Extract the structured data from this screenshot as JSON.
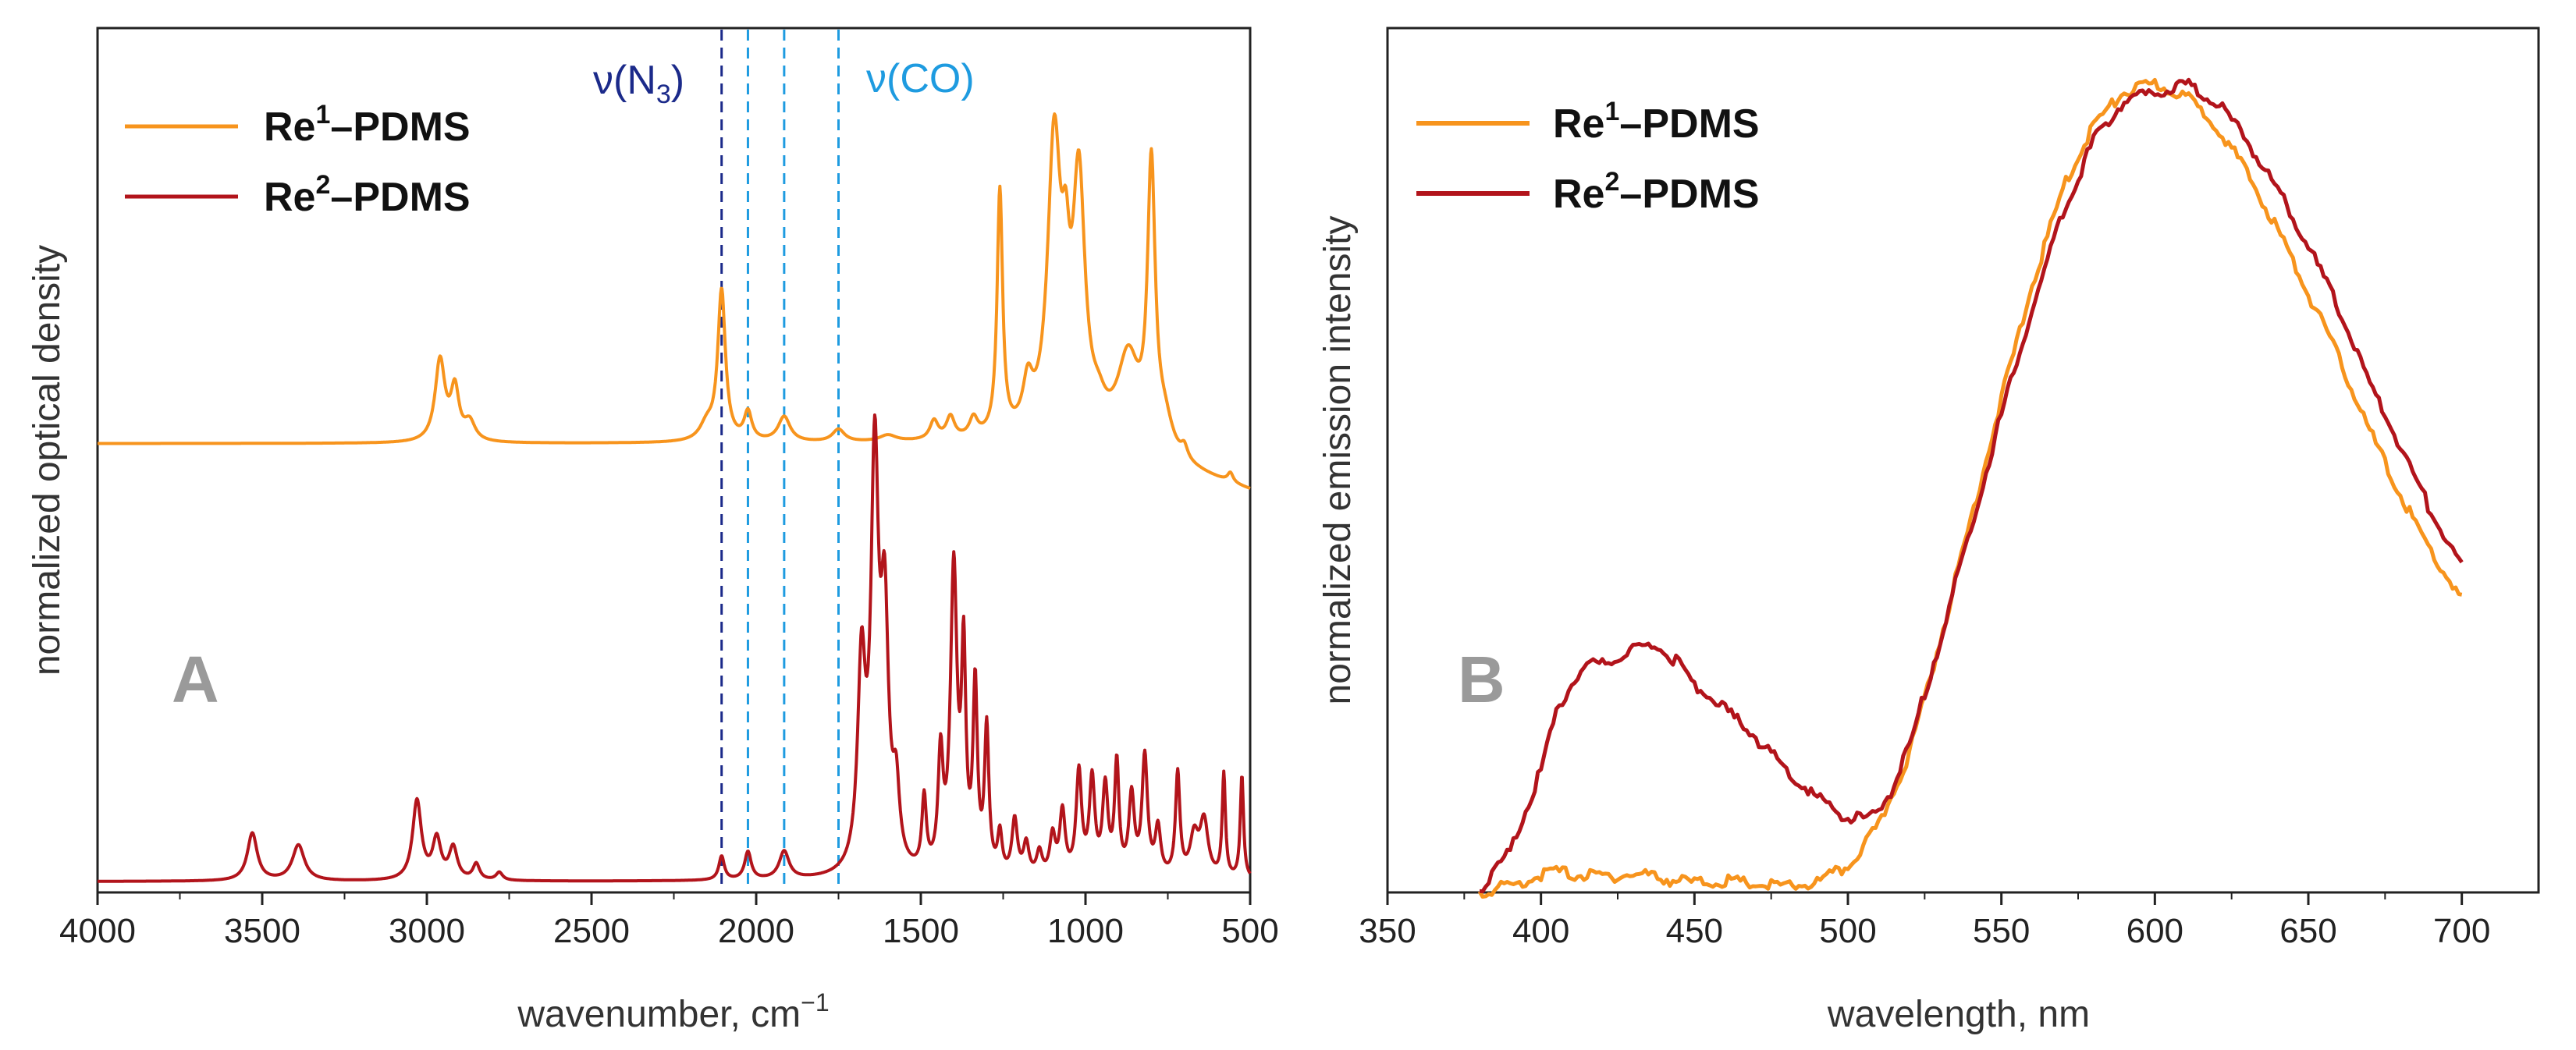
{
  "chart_data": [
    {
      "type": "line",
      "panel_label": "A",
      "xlabel": "wavenumber, cm",
      "xlabel_superscript": "−1",
      "ylabel": "normalized optical density",
      "xlim": [
        4000,
        500
      ],
      "ylim": [
        0,
        1
      ],
      "x_ticks": [
        "4000",
        "3500",
        "3000",
        "2500",
        "2000",
        "1500",
        "1000",
        "500"
      ],
      "legend": [
        {
          "prefix": "Re",
          "superscript": "1",
          "suffix": "–PDMS",
          "color": "#f7941d"
        },
        {
          "prefix": "Re",
          "superscript": "2",
          "suffix": "–PDMS",
          "color": "#b2141b"
        }
      ],
      "annotations": [
        {
          "text": "ν(N",
          "subscript": "3",
          "close": ")",
          "color": "#1b2a8a",
          "at_x": 2100
        },
        {
          "text": "ν(CO)",
          "color": "#1e9be0",
          "at_x": 1750
        }
      ],
      "dashed_lines": [
        {
          "x": 2105,
          "color": "#1b2a8a"
        },
        {
          "x": 2025,
          "color": "#1e9be0"
        },
        {
          "x": 1915,
          "color": "#1e9be0"
        },
        {
          "x": 1750,
          "color": "#1e9be0"
        }
      ],
      "series": [
        {
          "name": "Re1–PDMS",
          "color": "#f7941d",
          "baseline": 0.545,
          "peaks": [
            [
              2960,
              0.13,
              18
            ],
            [
              2915,
              0.08,
              15
            ],
            [
              2870,
              0.03,
              20
            ],
            [
              2105,
              0.24,
              14
            ],
            [
              2150,
              0.025,
              25
            ],
            [
              2025,
              0.045,
              14
            ],
            [
              1915,
              0.04,
              22
            ],
            [
              1750,
              0.02,
              22
            ],
            [
              1600,
              0.01,
              30
            ],
            [
              1460,
              0.03,
              15
            ],
            [
              1410,
              0.035,
              15
            ],
            [
              1340,
              0.03,
              15
            ],
            [
              1260,
              0.39,
              10
            ],
            [
              1175,
              0.07,
              18
            ],
            [
              1095,
              0.46,
              24
            ],
            [
              1060,
              0.16,
              14
            ],
            [
              1020,
              0.39,
              22
            ],
            [
              960,
              0.03,
              25
            ],
            [
              870,
              0.14,
              40
            ],
            [
              800,
              0.44,
              14
            ],
            [
              760,
              0.05,
              30
            ],
            [
              700,
              0.02,
              12
            ],
            [
              560,
              0.015,
              10
            ]
          ],
          "tilt": [
            [
              1000,
              0.0
            ],
            [
              500,
              -0.06
            ]
          ]
        },
        {
          "name": "Re2–PDMS",
          "color": "#b2141b",
          "baseline": 0.0,
          "peaks": [
            [
              3530,
              0.06,
              18
            ],
            [
              3390,
              0.045,
              22
            ],
            [
              3030,
              0.1,
              16
            ],
            [
              2970,
              0.05,
              15
            ],
            [
              2920,
              0.04,
              15
            ],
            [
              2850,
              0.02,
              12
            ],
            [
              2780,
              0.01,
              12
            ],
            [
              2105,
              0.03,
              10
            ],
            [
              2025,
              0.035,
              12
            ],
            [
              1915,
              0.035,
              18
            ],
            [
              1680,
              0.25,
              14
            ],
            [
              1640,
              0.5,
              14
            ],
            [
              1610,
              0.3,
              14
            ],
            [
              1575,
              0.09,
              12
            ],
            [
              1490,
              0.09,
              8
            ],
            [
              1440,
              0.14,
              9
            ],
            [
              1400,
              0.38,
              12
            ],
            [
              1370,
              0.26,
              8
            ],
            [
              1335,
              0.23,
              8
            ],
            [
              1300,
              0.18,
              8
            ],
            [
              1260,
              0.05,
              8
            ],
            [
              1215,
              0.07,
              10
            ],
            [
              1180,
              0.04,
              10
            ],
            [
              1140,
              0.03,
              10
            ],
            [
              1100,
              0.05,
              10
            ],
            [
              1070,
              0.08,
              10
            ],
            [
              1020,
              0.13,
              10
            ],
            [
              980,
              0.12,
              10
            ],
            [
              940,
              0.11,
              10
            ],
            [
              905,
              0.14,
              8
            ],
            [
              860,
              0.1,
              10
            ],
            [
              820,
              0.15,
              10
            ],
            [
              780,
              0.06,
              10
            ],
            [
              720,
              0.13,
              8
            ],
            [
              670,
              0.05,
              15
            ],
            [
              640,
              0.07,
              15
            ],
            [
              580,
              0.13,
              6
            ],
            [
              525,
              0.13,
              6
            ]
          ],
          "tilt": []
        }
      ]
    },
    {
      "type": "line",
      "panel_label": "B",
      "xlabel": "wavelength, nm",
      "ylabel": "normalized emission intensity",
      "xlim": [
        350,
        725
      ],
      "ylim": [
        0,
        1
      ],
      "x_ticks": [
        "350",
        "400",
        "450",
        "500",
        "550",
        "600",
        "650",
        "700"
      ],
      "legend": [
        {
          "prefix": "Re",
          "superscript": "1",
          "suffix": "–PDMS",
          "color": "#f7941d"
        },
        {
          "prefix": "Re",
          "superscript": "2",
          "suffix": "–PDMS",
          "color": "#b2141b"
        }
      ],
      "series": [
        {
          "name": "Re1–PDMS",
          "color": "#f7941d",
          "x": [
            380,
            390,
            400,
            405,
            410,
            420,
            430,
            435,
            440,
            450,
            460,
            470,
            480,
            490,
            500,
            510,
            520,
            530,
            540,
            550,
            560,
            570,
            580,
            590,
            600,
            610,
            620,
            630,
            640,
            650,
            660,
            670,
            680,
            690,
            700
          ],
          "y": [
            0.0,
            0.005,
            0.02,
            0.025,
            0.02,
            0.018,
            0.02,
            0.02,
            0.015,
            0.01,
            0.012,
            0.008,
            0.005,
            0.01,
            0.03,
            0.08,
            0.17,
            0.31,
            0.46,
            0.61,
            0.75,
            0.87,
            0.95,
            0.99,
            1.0,
            0.985,
            0.95,
            0.89,
            0.82,
            0.74,
            0.66,
            0.57,
            0.49,
            0.42,
            0.36
          ]
        },
        {
          "name": "Re2–PDMS",
          "color": "#b2141b",
          "x": [
            380,
            390,
            400,
            405,
            410,
            415,
            420,
            425,
            430,
            435,
            440,
            445,
            450,
            460,
            470,
            480,
            490,
            500,
            505,
            510,
            515,
            520,
            530,
            540,
            550,
            560,
            570,
            580,
            590,
            600,
            610,
            620,
            630,
            640,
            650,
            660,
            670,
            680,
            690,
            700
          ],
          "y": [
            0.0,
            0.05,
            0.15,
            0.22,
            0.26,
            0.28,
            0.28,
            0.29,
            0.3,
            0.305,
            0.3,
            0.28,
            0.255,
            0.225,
            0.19,
            0.15,
            0.115,
            0.09,
            0.09,
            0.1,
            0.13,
            0.18,
            0.31,
            0.45,
            0.59,
            0.72,
            0.84,
            0.93,
            0.98,
            0.99,
            1.0,
            0.98,
            0.93,
            0.87,
            0.8,
            0.72,
            0.63,
            0.55,
            0.47,
            0.4
          ]
        }
      ]
    }
  ]
}
